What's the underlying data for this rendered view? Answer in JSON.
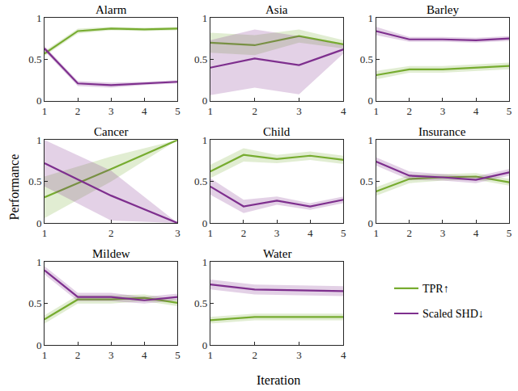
{
  "chart_data": [
    {
      "type": "line",
      "title": "Alarm",
      "x": [
        1,
        2,
        3,
        4,
        5
      ],
      "xlim": [
        1,
        5
      ],
      "xticks": [
        1,
        2,
        3,
        4,
        5
      ],
      "ylim": [
        0,
        1
      ],
      "yticks": [
        0,
        0.5,
        1
      ],
      "series": [
        {
          "name": "TPR↑",
          "color": "#77ac30",
          "values": [
            0.57,
            0.84,
            0.87,
            0.86,
            0.87
          ],
          "error": [
            0.03,
            0.03,
            0.02,
            0.02,
            0.02
          ]
        },
        {
          "name": "Scaled SHD↓",
          "color": "#7e2f8e",
          "values": [
            0.63,
            0.21,
            0.19,
            0.21,
            0.23
          ],
          "error": [
            0.03,
            0.03,
            0.03,
            0.02,
            0.02
          ]
        }
      ]
    },
    {
      "type": "line",
      "title": "Asia",
      "x": [
        1,
        2,
        3,
        4
      ],
      "xlim": [
        1,
        4
      ],
      "xticks": [
        1,
        2,
        3,
        4
      ],
      "ylim": [
        0,
        1
      ],
      "yticks": [
        0,
        0.5,
        1
      ],
      "series": [
        {
          "name": "TPR↑",
          "color": "#77ac30",
          "values": [
            0.7,
            0.67,
            0.78,
            0.68
          ],
          "error": [
            0.12,
            0.12,
            0.08,
            0.05
          ]
        },
        {
          "name": "Scaled SHD↓",
          "color": "#7e2f8e",
          "values": [
            0.4,
            0.51,
            0.43,
            0.62
          ],
          "error": [
            0.33,
            0.35,
            0.35,
            0.05
          ]
        }
      ]
    },
    {
      "type": "line",
      "title": "Barley",
      "x": [
        1,
        2,
        3,
        4,
        5
      ],
      "xlim": [
        1,
        5
      ],
      "xticks": [
        1,
        2,
        3,
        4,
        5
      ],
      "ylim": [
        0,
        1
      ],
      "yticks": [
        0,
        0.5,
        1
      ],
      "series": [
        {
          "name": "TPR↑",
          "color": "#77ac30",
          "values": [
            0.31,
            0.38,
            0.38,
            0.4,
            0.42
          ],
          "error": [
            0.05,
            0.04,
            0.04,
            0.04,
            0.04
          ]
        },
        {
          "name": "Scaled SHD↓",
          "color": "#7e2f8e",
          "values": [
            0.84,
            0.74,
            0.74,
            0.73,
            0.75
          ],
          "error": [
            0.05,
            0.03,
            0.03,
            0.03,
            0.03
          ]
        }
      ]
    },
    {
      "type": "line",
      "title": "Cancer",
      "x": [
        1,
        2,
        3
      ],
      "xlim": [
        1,
        3
      ],
      "xticks": [
        1,
        2,
        3
      ],
      "ylim": [
        0,
        1
      ],
      "yticks": [
        0,
        0.5,
        1
      ],
      "series": [
        {
          "name": "TPR↑",
          "color": "#77ac30",
          "values": [
            0.31,
            0.65,
            1.0
          ],
          "error": [
            0.25,
            0.15,
            0
          ]
        },
        {
          "name": "Scaled SHD↓",
          "color": "#7e2f8e",
          "values": [
            0.72,
            0.33,
            0.0
          ],
          "error": [
            0.28,
            0.3,
            0
          ]
        }
      ]
    },
    {
      "type": "line",
      "title": "Child",
      "x": [
        1,
        2,
        3,
        4,
        5
      ],
      "xlim": [
        1,
        5
      ],
      "xticks": [
        1,
        2,
        3,
        4,
        5
      ],
      "ylim": [
        0,
        1
      ],
      "yticks": [
        0,
        0.5,
        1
      ],
      "series": [
        {
          "name": "TPR↑",
          "color": "#77ac30",
          "values": [
            0.62,
            0.82,
            0.77,
            0.81,
            0.76
          ],
          "error": [
            0.08,
            0.08,
            0.05,
            0.05,
            0.05
          ]
        },
        {
          "name": "Scaled SHD↓",
          "color": "#7e2f8e",
          "values": [
            0.44,
            0.2,
            0.27,
            0.2,
            0.28
          ],
          "error": [
            0.1,
            0.08,
            0.05,
            0.04,
            0.04
          ]
        }
      ]
    },
    {
      "type": "line",
      "title": "Insurance",
      "x": [
        1,
        2,
        3,
        4,
        5
      ],
      "xlim": [
        1,
        5
      ],
      "xticks": [
        1,
        2,
        3,
        4,
        5
      ],
      "ylim": [
        0,
        1
      ],
      "yticks": [
        0,
        0.5,
        1
      ],
      "series": [
        {
          "name": "TPR↑",
          "color": "#77ac30",
          "values": [
            0.38,
            0.53,
            0.55,
            0.56,
            0.49
          ],
          "error": [
            0.05,
            0.05,
            0.04,
            0.04,
            0.04
          ]
        },
        {
          "name": "Scaled SHD↓",
          "color": "#7e2f8e",
          "values": [
            0.74,
            0.57,
            0.55,
            0.52,
            0.61
          ],
          "error": [
            0.05,
            0.05,
            0.04,
            0.04,
            0.04
          ]
        }
      ]
    },
    {
      "type": "line",
      "title": "Mildew",
      "x": [
        1,
        2,
        3,
        4,
        5
      ],
      "xlim": [
        1,
        5
      ],
      "xticks": [
        1,
        2,
        3,
        4,
        5
      ],
      "ylim": [
        0,
        1
      ],
      "yticks": [
        0,
        0.5,
        1
      ],
      "series": [
        {
          "name": "TPR↑",
          "color": "#77ac30",
          "values": [
            0.31,
            0.55,
            0.55,
            0.57,
            0.51
          ],
          "error": [
            0.05,
            0.05,
            0.05,
            0.04,
            0.04
          ]
        },
        {
          "name": "Scaled SHD↓",
          "color": "#7e2f8e",
          "values": [
            0.9,
            0.58,
            0.58,
            0.54,
            0.58
          ],
          "error": [
            0.05,
            0.05,
            0.05,
            0.04,
            0.04
          ]
        }
      ]
    },
    {
      "type": "line",
      "title": "Water",
      "x": [
        1,
        2,
        3,
        4
      ],
      "xlim": [
        1,
        4
      ],
      "xticks": [
        1,
        2,
        3,
        4
      ],
      "ylim": [
        0,
        1
      ],
      "yticks": [
        0,
        0.5,
        1
      ],
      "series": [
        {
          "name": "TPR↑",
          "color": "#77ac30",
          "values": [
            0.3,
            0.34,
            0.34,
            0.34
          ],
          "error": [
            0.04,
            0.04,
            0.04,
            0.04
          ]
        },
        {
          "name": "Scaled SHD↓",
          "color": "#7e2f8e",
          "values": [
            0.73,
            0.67,
            0.66,
            0.65
          ],
          "error": [
            0.06,
            0.06,
            0.06,
            0.06
          ]
        }
      ]
    }
  ],
  "x_label": "Iteration",
  "y_label": "Performance",
  "legend": "lower right"
}
